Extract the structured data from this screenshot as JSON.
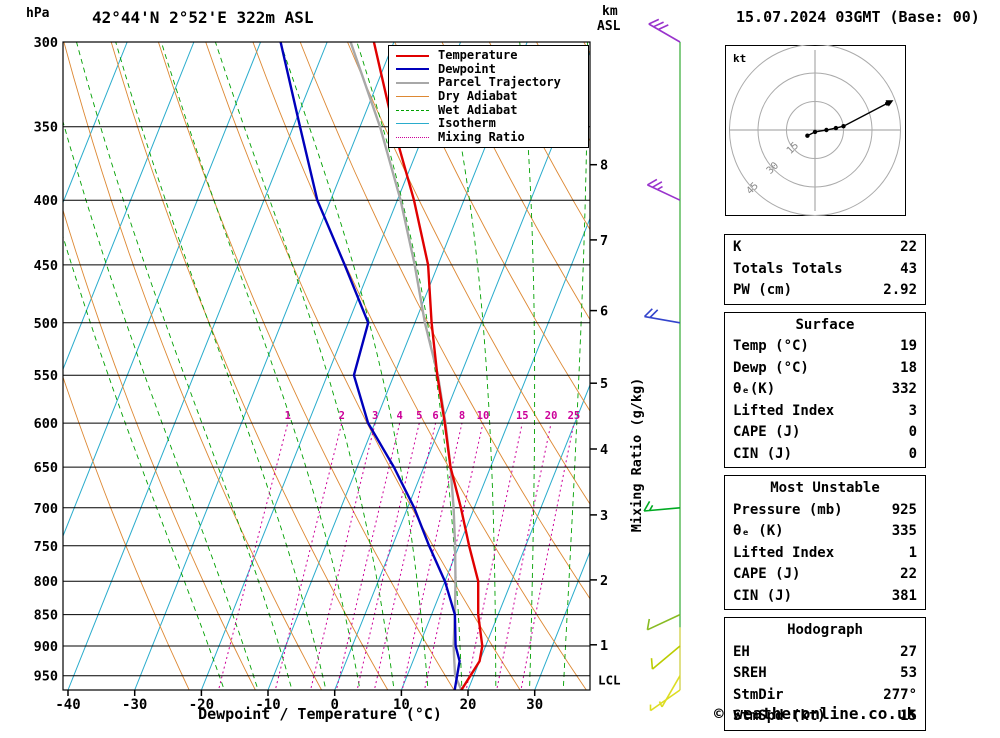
{
  "header": {
    "pressure_unit": "hPa",
    "station": "42°44'N 2°52'E 322m ASL",
    "altitude_unit_line1": "km",
    "altitude_unit_line2": "ASL",
    "datetime": "15.07.2024 03GMT (Base: 00)"
  },
  "legend": {
    "items": [
      {
        "label": "Temperature",
        "color": "#e00000",
        "style": "solid",
        "width": 2
      },
      {
        "label": "Dewpoint",
        "color": "#0000bb",
        "style": "solid",
        "width": 2
      },
      {
        "label": "Parcel Trajectory",
        "color": "#a8a8a8",
        "style": "solid",
        "width": 2
      },
      {
        "label": "Dry Adiabat",
        "color": "#dd8833",
        "style": "solid",
        "width": 1
      },
      {
        "label": "Wet Adiabat",
        "color": "#00a000",
        "style": "dashed",
        "width": 1
      },
      {
        "label": "Isotherm",
        "color": "#2aaccc",
        "style": "solid",
        "width": 1
      },
      {
        "label": "Mixing Ratio",
        "color": "#cc0099",
        "style": "dotted",
        "width": 1
      }
    ]
  },
  "axes": {
    "pressure_ticks": [
      300,
      350,
      400,
      450,
      500,
      550,
      600,
      650,
      700,
      750,
      800,
      850,
      900,
      950
    ],
    "temp_ticks": [
      -40,
      -30,
      -20,
      -10,
      0,
      10,
      20,
      30
    ],
    "km_levels": [
      {
        "km": 1,
        "p": 898
      },
      {
        "km": 2,
        "p": 798
      },
      {
        "km": 3,
        "p": 709
      },
      {
        "km": 4,
        "p": 629
      },
      {
        "km": 5,
        "p": 558
      },
      {
        "km": 6,
        "p": 489
      },
      {
        "km": 7,
        "p": 430
      },
      {
        "km": 8,
        "p": 375
      }
    ],
    "mixing_ratio_values": [
      1,
      2,
      3,
      4,
      5,
      6,
      8,
      10,
      15,
      20,
      25
    ],
    "xlabel": "Dewpoint / Temperature (°C)",
    "mixing_axis_label": "Mixing Ratio (g/kg)",
    "lcl": {
      "label": "LCL",
      "p": 958
    }
  },
  "chart_data": {
    "type": "skewt-log-p",
    "pressure_range": [
      300,
      975
    ],
    "skew": 0.4,
    "colors": {
      "temperature": "#e00000",
      "dewpoint": "#0000bb",
      "parcel": "#a8a8a8",
      "dry_adiabat": "#dd8833",
      "wet_adiabat": "#00a000",
      "isotherm": "#2aaccc",
      "mixing_ratio": "#cc0099",
      "pressure_line": "#000000"
    },
    "temperature": {
      "p": [
        975,
        950,
        925,
        900,
        850,
        800,
        750,
        700,
        650,
        600,
        550,
        500,
        450,
        400,
        350,
        300
      ],
      "t": [
        19,
        19.5,
        20,
        19.5,
        17,
        15,
        11.5,
        8,
        4,
        0.5,
        -3.5,
        -7.5,
        -11.5,
        -17.5,
        -25,
        -33
      ]
    },
    "dewpoint": {
      "p": [
        975,
        950,
        925,
        900,
        850,
        800,
        750,
        700,
        650,
        600,
        550,
        500,
        450,
        400,
        350,
        300
      ],
      "t": [
        18,
        17.5,
        17,
        15.5,
        13.5,
        10,
        5.5,
        1,
        -4.5,
        -11,
        -16,
        -17,
        -24,
        -32,
        -39,
        -47
      ]
    },
    "parcel": {
      "p": [
        975,
        950,
        925,
        900,
        850,
        800,
        750,
        700,
        650,
        600,
        550,
        500,
        450,
        400,
        350,
        300
      ],
      "t": [
        19,
        17.2,
        16.2,
        15.2,
        13.5,
        11.6,
        9.4,
        6.9,
        4.0,
        0.6,
        -3.4,
        -8.5,
        -13.5,
        -19.5,
        -27,
        -36.5
      ]
    },
    "wind_barbs": [
      {
        "p": 300,
        "speed": 30,
        "dir": 300,
        "color": "#9933cc"
      },
      {
        "p": 400,
        "speed": 25,
        "dir": 295,
        "color": "#9933cc"
      },
      {
        "p": 500,
        "speed": 20,
        "dir": 280,
        "color": "#3344cc"
      },
      {
        "p": 700,
        "speed": 15,
        "dir": 265,
        "color": "#00aa22"
      },
      {
        "p": 850,
        "speed": 10,
        "dir": 245,
        "color": "#88bb22"
      },
      {
        "p": 900,
        "speed": 10,
        "dir": 230,
        "color": "#bbcc00"
      },
      {
        "p": 950,
        "speed": 5,
        "dir": 210,
        "color": "#dddd22"
      },
      {
        "p": 975,
        "speed": 5,
        "dir": 235,
        "color": "#dddd22"
      }
    ],
    "hodograph": {
      "unit": "kt",
      "rings_kt": [
        15,
        30,
        45
      ],
      "trace_kt": [
        {
          "u": -4,
          "v": -3
        },
        {
          "u": 0,
          "v": -1
        },
        {
          "u": 6,
          "v": 0
        },
        {
          "u": 11,
          "v": 1
        },
        {
          "u": 15,
          "v": 2
        },
        {
          "u": 38,
          "v": 14
        }
      ]
    }
  },
  "panels": {
    "indices": {
      "rows": [
        [
          "K",
          "22"
        ],
        [
          "Totals Totals",
          "43"
        ],
        [
          "PW (cm)",
          "2.92"
        ]
      ]
    },
    "surface": {
      "title": "Surface",
      "rows": [
        [
          "Temp (°C)",
          "19"
        ],
        [
          "Dewp (°C)",
          "18"
        ],
        [
          "θₑ(K)",
          "332"
        ],
        [
          "Lifted Index",
          "3"
        ],
        [
          "CAPE (J)",
          "0"
        ],
        [
          "CIN (J)",
          "0"
        ]
      ]
    },
    "most_unstable": {
      "title": "Most Unstable",
      "rows": [
        [
          "Pressure (mb)",
          "925"
        ],
        [
          "θₑ (K)",
          "335"
        ],
        [
          "Lifted Index",
          "1"
        ],
        [
          "CAPE (J)",
          "22"
        ],
        [
          "CIN (J)",
          "381"
        ]
      ]
    },
    "hodograph": {
      "title": "Hodograph",
      "rows": [
        [
          "EH",
          "27"
        ],
        [
          "SREH",
          "53"
        ],
        [
          "StmDir",
          "277°"
        ],
        [
          "StmSpd (kt)",
          "15"
        ]
      ]
    }
  },
  "footer": {
    "copyright": "© weatheronline.co.uk"
  }
}
